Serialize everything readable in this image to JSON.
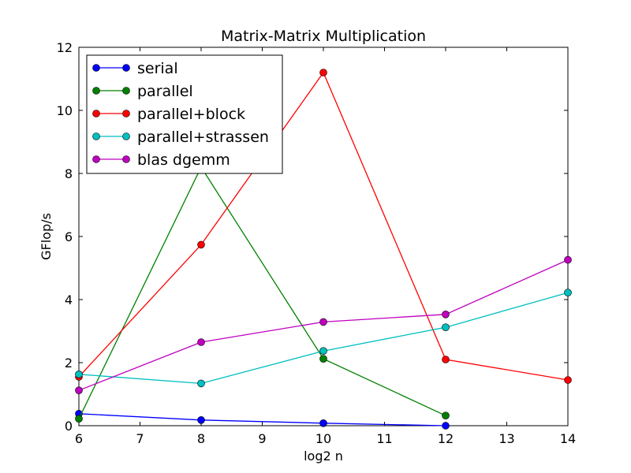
{
  "chart_data": {
    "type": "line",
    "title": "Matrix-Matrix Multiplication",
    "xlabel": "log2 n",
    "ylabel": "GFlop/s",
    "xlim": [
      6,
      14
    ],
    "ylim": [
      0,
      12
    ],
    "xticks": [
      6,
      7,
      8,
      9,
      10,
      11,
      12,
      13,
      14
    ],
    "yticks": [
      0,
      2,
      4,
      6,
      8,
      10,
      12
    ],
    "grid": false,
    "legend_position": "top-left",
    "series": [
      {
        "name": "serial",
        "color": "#0000ff",
        "x": [
          6,
          8,
          10,
          12
        ],
        "y": [
          0.38,
          0.18,
          0.08,
          0.0
        ]
      },
      {
        "name": "parallel",
        "color": "#008000",
        "x": [
          6,
          8,
          10,
          12
        ],
        "y": [
          0.22,
          8.2,
          2.12,
          0.32
        ]
      },
      {
        "name": "parallel+block",
        "color": "#ff0000",
        "x": [
          6,
          8,
          10,
          12,
          14
        ],
        "y": [
          1.55,
          5.74,
          11.2,
          2.1,
          1.45
        ]
      },
      {
        "name": "parallel+strassen",
        "color": "#00bfbf",
        "x": [
          6,
          8,
          10,
          12,
          14
        ],
        "y": [
          1.63,
          1.34,
          2.37,
          3.12,
          4.22
        ]
      },
      {
        "name": "blas dgemm",
        "color": "#bf00bf",
        "x": [
          6,
          8,
          10,
          12,
          14
        ],
        "y": [
          1.12,
          2.65,
          3.29,
          3.53,
          5.26
        ]
      }
    ]
  }
}
